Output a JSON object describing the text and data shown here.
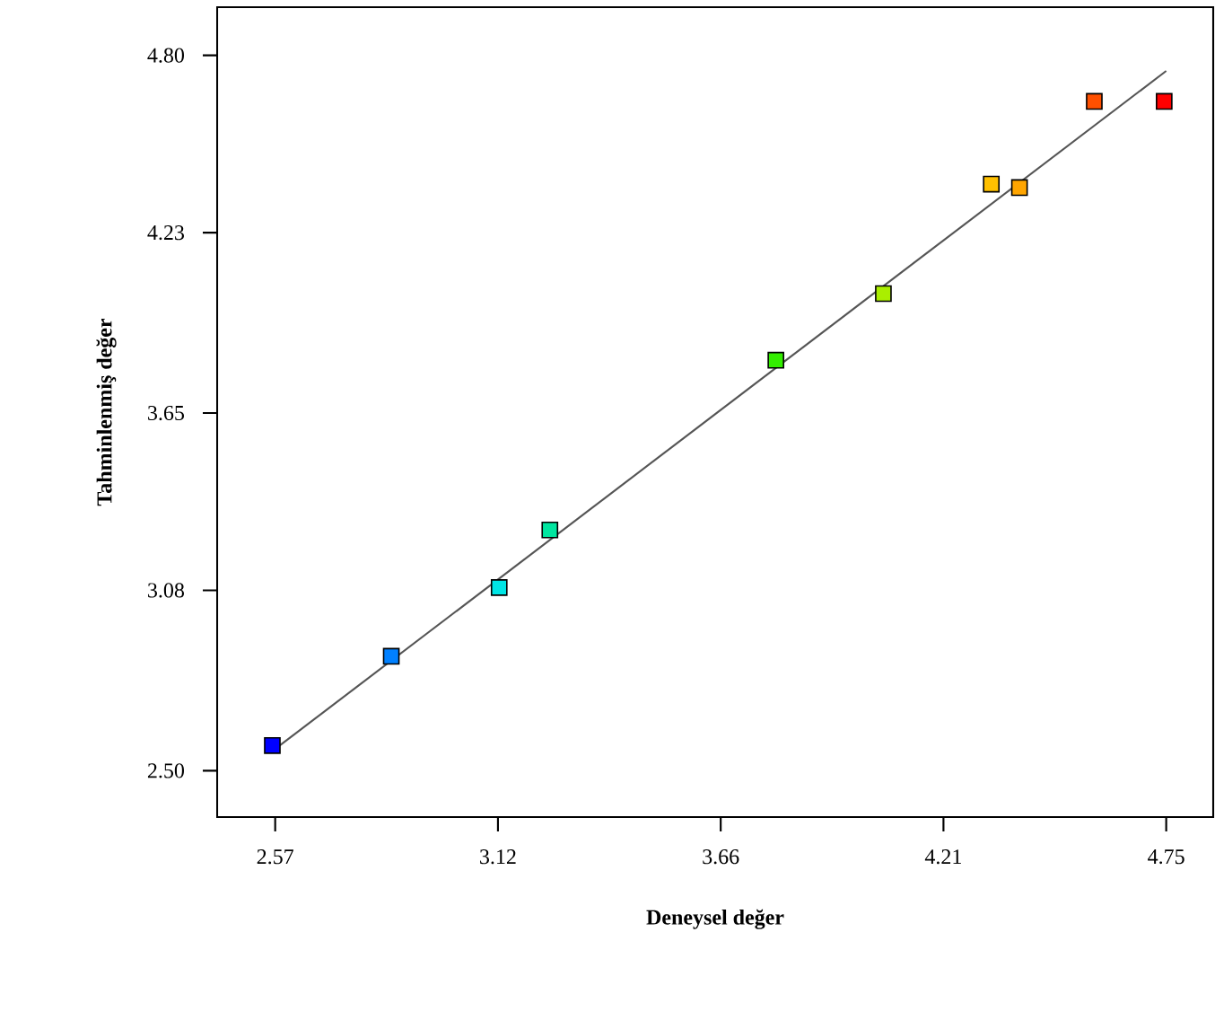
{
  "chart_data": {
    "type": "scatter",
    "xlabel": "Deneysel değer",
    "ylabel": "Tahminlenmiş değer",
    "xlim": [
      2.428,
      4.865
    ],
    "ylim": [
      2.351,
      4.955
    ],
    "xticks": [
      2.57,
      {
        "value": 3.115,
        "label": "3.12"
      },
      3.66,
      {
        "value": 4.205,
        "label": "4.21"
      },
      4.75
    ],
    "yticks": [
      {
        "value": 2.5,
        "label": "2.50"
      },
      3.08,
      3.65,
      4.23,
      {
        "value": 4.8,
        "label": "4.80"
      }
    ],
    "grid": false,
    "series": [
      {
        "marker": "square",
        "x": [
          2.563,
          2.854,
          3.118,
          3.242,
          3.795,
          4.058,
          4.322,
          4.391,
          4.574,
          4.745
        ],
        "values": [
          2.581,
          2.868,
          3.089,
          3.274,
          3.82,
          4.034,
          4.386,
          4.375,
          4.652,
          4.652
        ],
        "colors": [
          "#0000ff",
          "#0080ff",
          "#00e5e5",
          "#00e6a0",
          "#33ee00",
          "#aaee00",
          "#ffc000",
          "#ffa500",
          "#ff5000",
          "#ff0000"
        ]
      },
      {
        "type": "line",
        "marker": "none",
        "line_style": "solid",
        "color": "#555555",
        "x": [
          2.57,
          4.75
        ],
        "values": [
          2.57,
          4.75
        ]
      }
    ]
  }
}
